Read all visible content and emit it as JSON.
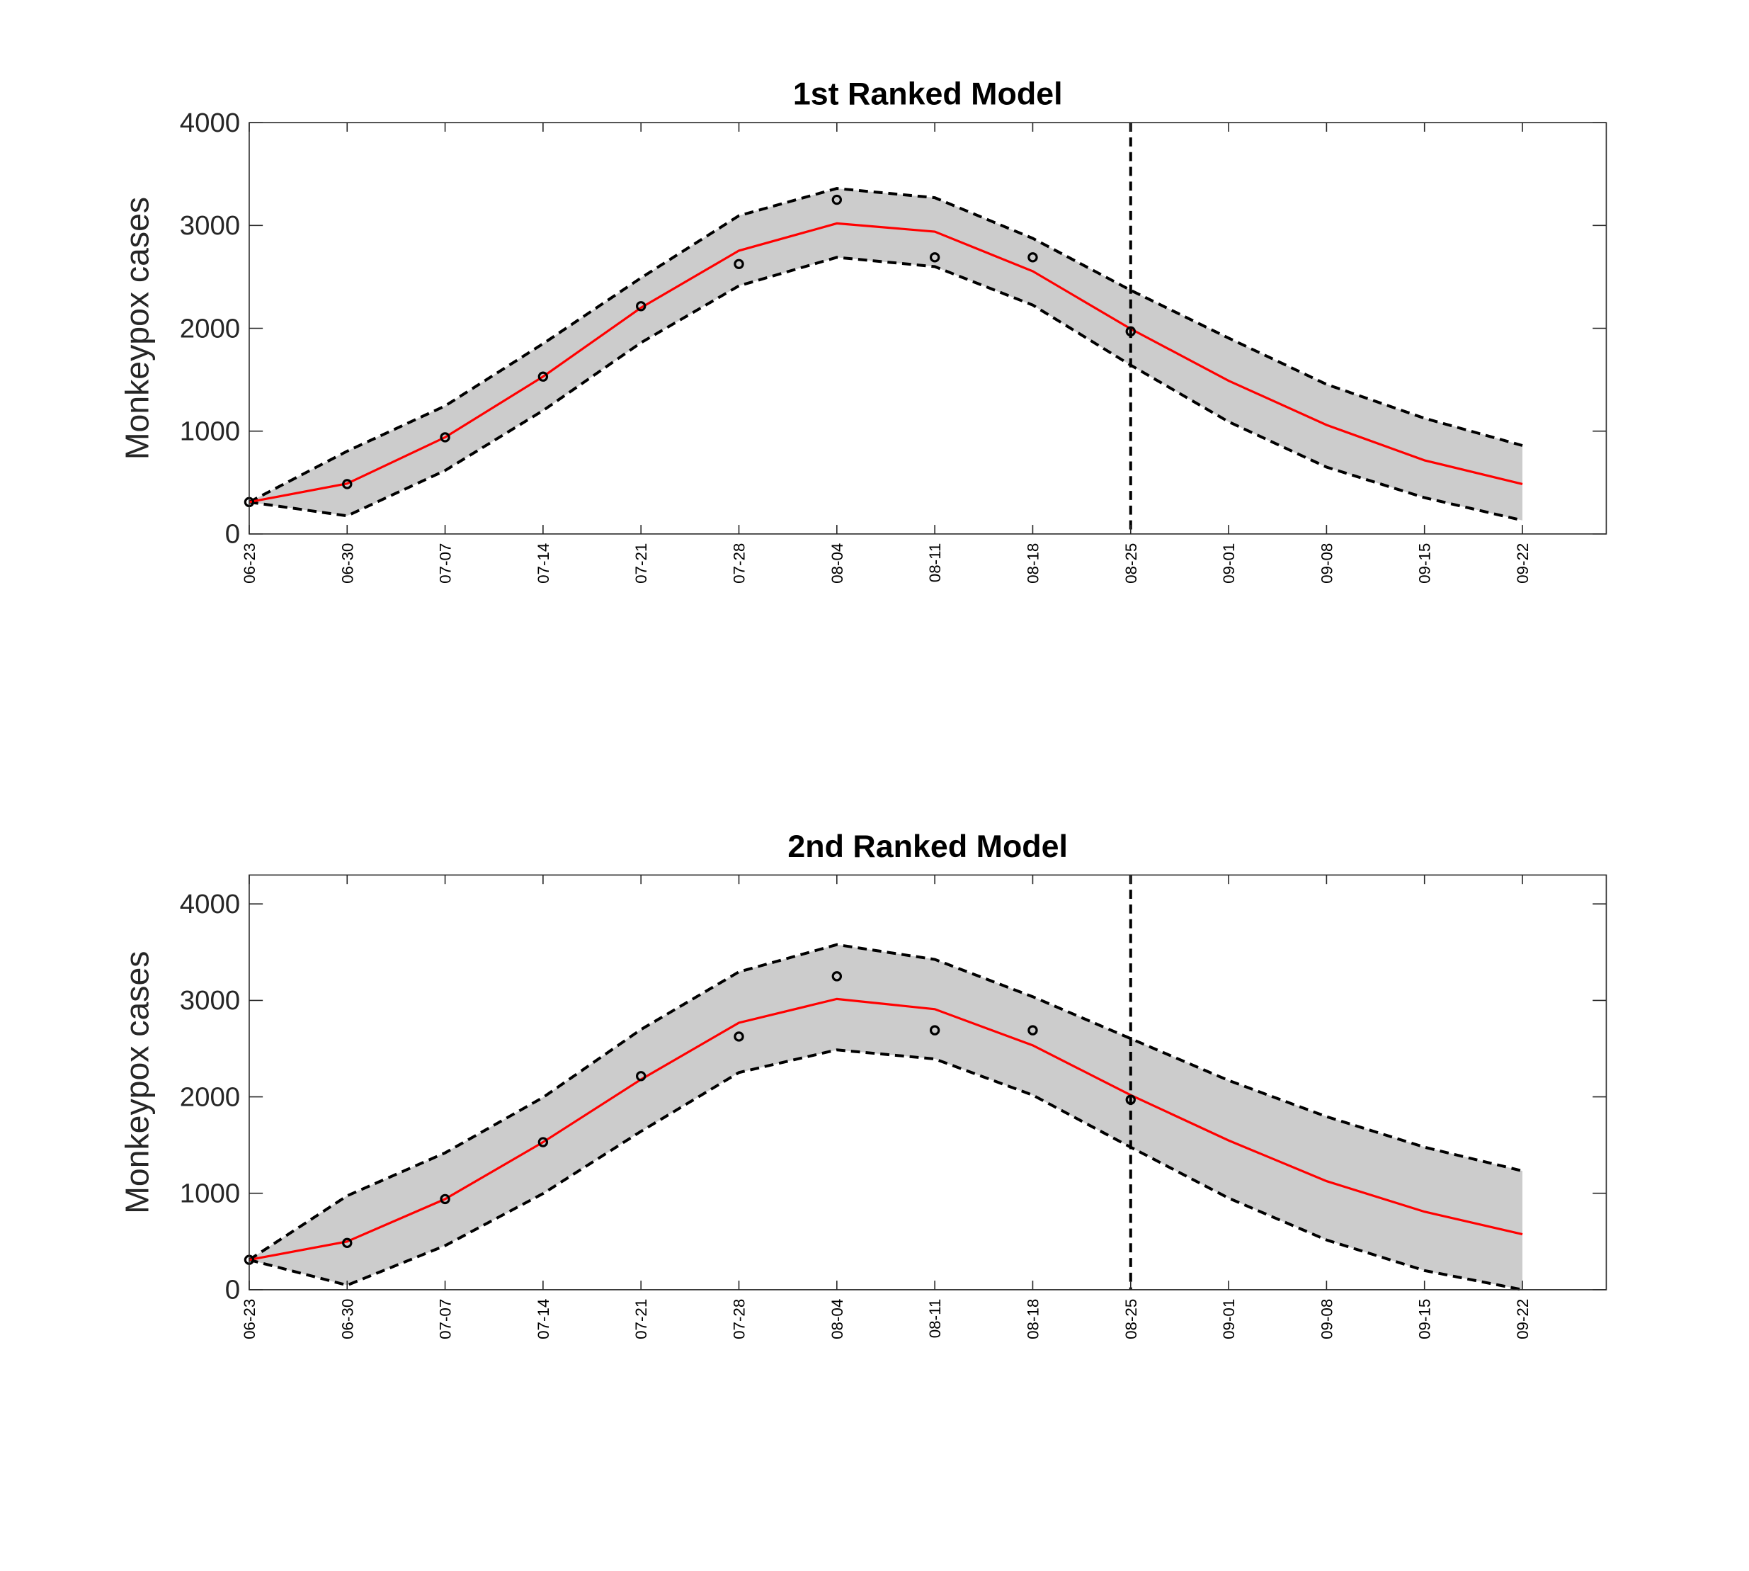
{
  "chart_data": [
    {
      "type": "line",
      "title": "1st Ranked Model",
      "y_label": "Monkeypox cases",
      "categories": [
        "06-23",
        "06-30",
        "07-07",
        "07-14",
        "07-21",
        "07-28",
        "08-04",
        "08-11",
        "08-18",
        "08-25",
        "09-01",
        "09-08",
        "09-15",
        "09-22"
      ],
      "ylim": [
        0,
        4000
      ],
      "yticks": [
        0,
        1000,
        2000,
        3000,
        4000
      ],
      "vline": "08-25",
      "band_color": "#cccccc",
      "observed": {
        "color": "#000000",
        "values": [
          310,
          485,
          940,
          1530,
          2215,
          2625,
          3250,
          2690,
          2690,
          1970,
          null,
          null,
          null,
          null
        ]
      },
      "fit": {
        "color": "#ff0000",
        "values": [
          310,
          490,
          940,
          1530,
          2200,
          2755,
          3020,
          2940,
          2555,
          1995,
          1490,
          1060,
          716,
          485
        ]
      },
      "upper": {
        "color": "#000000",
        "values": [
          310,
          805,
          1245,
          1850,
          2490,
          3095,
          3360,
          3270,
          2875,
          2370,
          1905,
          1455,
          1125,
          860
        ]
      },
      "lower": {
        "color": "#000000",
        "values": [
          310,
          176,
          617,
          1200,
          1860,
          2413,
          2690,
          2600,
          2226,
          1642,
          1091,
          650,
          353,
          132
        ]
      }
    },
    {
      "type": "line",
      "title": "2nd Ranked Model",
      "y_label": "Monkeypox cases",
      "categories": [
        "06-23",
        "06-30",
        "07-07",
        "07-14",
        "07-21",
        "07-28",
        "08-04",
        "08-11",
        "08-18",
        "08-25",
        "09-01",
        "09-08",
        "09-15",
        "09-22"
      ],
      "ylim": [
        0,
        4300
      ],
      "yticks": [
        0,
        1000,
        2000,
        3000,
        4000
      ],
      "vline": "08-25",
      "band_color": "#cccccc",
      "observed": {
        "color": "#000000",
        "values": [
          310,
          485,
          940,
          1530,
          2215,
          2625,
          3250,
          2690,
          2690,
          1970,
          null,
          null,
          null,
          null
        ]
      },
      "fit": {
        "color": "#ff0000",
        "values": [
          310,
          500,
          940,
          1530,
          2180,
          2768,
          3015,
          2909,
          2534,
          2018,
          1548,
          1126,
          809,
          575
        ]
      },
      "upper": {
        "color": "#000000",
        "values": [
          310,
          974,
          1419,
          1994,
          2698,
          3296,
          3578,
          3425,
          3038,
          2604,
          2170,
          1795,
          1478,
          1232
        ]
      },
      "lower": {
        "color": "#000000",
        "values": [
          310,
          47,
          457,
          997,
          1642,
          2252,
          2487,
          2393,
          2018,
          1478,
          950,
          516,
          199,
          0
        ]
      }
    }
  ]
}
